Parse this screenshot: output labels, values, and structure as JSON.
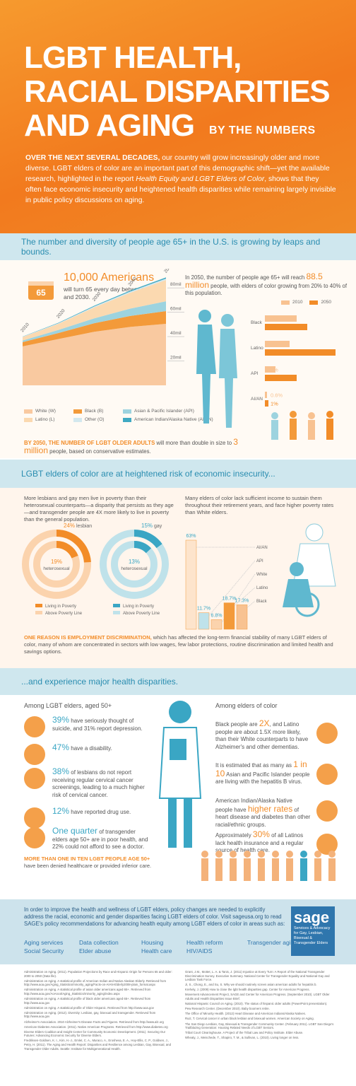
{
  "header": {
    "title_lines": [
      "LGBT HEALTH,",
      "RACIAL DISPARITIES",
      "AND AGING"
    ],
    "subtitle": "BY THE NUMBERS",
    "intro_parts": [
      "OVER THE NEXT SEVERAL DECADES,",
      " our country will grow increasingly older and more diverse. LGBT elders of color are an important part of this demographic shift—yet the available research, highlighted in the report ",
      "Health Equity and LGBT Elders of Color",
      ", shows that they often face economic insecurity and heightened health disparities while remaining largely invisible in public policy discussions on aging."
    ]
  },
  "growth": {
    "heading": "The number and diversity of people age 65+ in the U.S. is growing by leaps and bounds.",
    "cake_label": "65",
    "stat_number": "10,000 Americans",
    "stat_text": "will turn 65 every day between now and 2030.",
    "area_chart": {
      "type": "area",
      "x": [
        2010,
        2020,
        2030,
        2040,
        2050
      ],
      "xlim": [
        2010,
        2050
      ],
      "ylim": [
        0,
        90
      ],
      "yticks": [
        {
          "value": 20,
          "label": "20mil"
        },
        {
          "value": 40,
          "label": "40mil"
        },
        {
          "value": 60,
          "label": "60mil"
        },
        {
          "value": 80,
          "label": "80mil"
        }
      ],
      "series": [
        {
          "name": "White (W)",
          "color": "#f9c9a0",
          "values": [
            32,
            38,
            44,
            48,
            50.5
          ]
        },
        {
          "name": "Black (B)",
          "color": "#f39a3a",
          "values": [
            3.5,
            5,
            7,
            9,
            10.5
          ]
        },
        {
          "name": "Asian & Pacific Islander (API)",
          "color": "#9dd3df",
          "values": [
            1.3,
            2.5,
            4,
            6,
            8
          ]
        },
        {
          "name": "Latino (L)",
          "color": "#fbd9b0",
          "values": [
            2.8,
            5,
            9,
            13,
            17.5
          ]
        },
        {
          "name": "Other (O)",
          "color": "#d3e8ee",
          "values": [
            0.3,
            0.5,
            0.8,
            1,
            1.2
          ]
        },
        {
          "name": "American Indian/Alaska Native (AI/AN)",
          "color": "#3fa9c2",
          "values": [
            0.2,
            0.4,
            0.6,
            0.8,
            0.9
          ]
        }
      ]
    },
    "projection": {
      "pre": "In 2050, the number of people age 65+ will reach ",
      "highlight": "88.5 million",
      "post": " people, with elders of color growing from 20% to 40% of this population."
    },
    "bar_chart": {
      "type": "bar",
      "orientation": "horizontal",
      "categories": [
        "Black",
        "Latino",
        "API",
        "AI/AN"
      ],
      "xlim": [
        0,
        21
      ],
      "series": [
        {
          "name": "2010",
          "color": "#f8c291",
          "values": [
            9,
            7,
            3,
            0.6
          ],
          "value_labels": [
            "9%",
            "7%",
            "3%",
            "0.6%"
          ]
        },
        {
          "name": "2050",
          "color": "#f28c28",
          "values": [
            12,
            20,
            9,
            1
          ],
          "value_labels": [
            "12%",
            "20%",
            "9%",
            "1%"
          ]
        }
      ]
    },
    "footnote": {
      "lead": "BY 2050, THE NUMBER OF LGBT OLDER ADULTS",
      "mid": " will more than double in size to ",
      "highlight": "3 million",
      "post": " people, based on conservative estimates."
    }
  },
  "economic": {
    "heading": "LGBT elders of color are at heightened risk of economic insecurity...",
    "left_text": "More lesbians and gay men live in poverty than their heterosexual counterparts—a disparity that persists as they age—and transgender people are 4X more likely to live in poverty than the general population.",
    "right_text": "Many elders of color lack sufficient income to sustain them throughout their retirement years, and face higher poverty rates than White elders.",
    "donuts": [
      {
        "type": "donut",
        "categories": [
          "lesbian",
          "heterosexual"
        ],
        "values": [
          24,
          19
        ],
        "value_labels": [
          "24%",
          "19%"
        ],
        "legend": [
          "Living in Poverty",
          "Above Poverty Line"
        ],
        "colors": [
          "#f28c28",
          "#fbd3ad"
        ]
      },
      {
        "type": "donut",
        "categories": [
          "gay",
          "heterosexual"
        ],
        "values": [
          15,
          13
        ],
        "value_labels": [
          "15%",
          "13%"
        ],
        "legend": [
          "Living in Poverty",
          "Above Poverty Line"
        ],
        "colors": [
          "#3aa6c4",
          "#bfe2ea"
        ]
      }
    ],
    "poverty_chart": {
      "type": "bar",
      "categories": [
        "AI/AN",
        "API",
        "White",
        "Latino",
        "Black"
      ],
      "values": [
        63,
        11.7,
        6.8,
        18.7,
        17.3
      ],
      "value_labels": [
        "63%",
        "11.7%",
        "6.8%",
        "18.7%",
        "17.3%"
      ],
      "colors": [
        "#fde4cc",
        "#bfe2ea",
        "#fbd3ad",
        "#f39a3a",
        "#f8c291"
      ],
      "ylim": [
        0,
        65
      ]
    },
    "note": {
      "lead": "ONE REASON IS EMPLOYMENT DISCRIMINATION,",
      "post": " which has affected the long-term financial stability of many LGBT elders of color, many of whom are concentrated in sectors with low wages, few labor protections, routine discrimination and limited health and savings options."
    }
  },
  "health": {
    "heading": "...and experience major health disparities.",
    "left_heading": "Among LGBT elders, aged 50+",
    "left_items": [
      {
        "highlight": "39%",
        "text": " have seriously thought of suicide, and 31% report depression."
      },
      {
        "highlight": "47%",
        "text": " have a disability."
      },
      {
        "highlight": "38%",
        "text": " of lesbians do not report receiving regular cervical cancer screenings, leading to a much higher risk of cervical cancer."
      },
      {
        "highlight": "12%",
        "text": " have reported drug use."
      },
      {
        "highlight": "One quarter",
        "text": " of transgender elders age 50+ are in poor health, and 22% could not afford to see a doctor."
      }
    ],
    "bottom_lead": "MORE THAN ONE IN TEN LGBT PEOPLE AGE 50+",
    "bottom_text": "have been denied healthcare or provided inferior care.",
    "right_heading": "Among elders of color",
    "right_items": [
      {
        "pre": "Black people are ",
        "highlight": "2X",
        "post": ", and Latino people are about 1.5X more likely, than their White counterparts to have Alzheimer's and other dementias."
      },
      {
        "pre": "It is estimated that as many as ",
        "highlight": "1 in 10",
        "post": " Asian and Pacific Islander people are living with the hepatitis B virus."
      },
      {
        "pre": "American Indian/Alaska Native people have ",
        "highlight": "higher rates",
        "post": " of heart disease and diabetes than other racial/ethnic groups."
      },
      {
        "pre": "Approximately ",
        "highlight": "30%",
        "post": " of all Latinos lack health insurance and a regular source of health care."
      }
    ]
  },
  "cta": {
    "text": "In order to improve the health and wellness of LGBT elders, policy changes are needed to explicitly address the racial, economic and gender disparities facing LGBT elders of color. Visit sageusa.org to read SAGE's policy recommendations for advancing health equity among LGBT elders of color in areas such as:",
    "links": [
      "Aging services",
      "Social Security",
      "Data collection",
      "Elder abuse",
      "Housing",
      "Health care",
      "Health reform",
      "HIV/AIDS",
      "Transgender aging"
    ],
    "logo": "sage",
    "logo_text": "Services & Advocacy for Gay, Lesbian, Bisexual & Transgender Elders"
  },
  "references": {
    "left": [
      "Administration on Aging. (2011). Population Projections by Race and Hispanic Origin for Persons 65 and older: 2000 to 2050 (Data file).",
      "Administration on Aging. A statistical profile of American Indian and Native Alaskan Elderly. Retrieved from http://www.aoa.gov/Aging_Statistics/minority_aging/Facts-on-AIAN-Elderly2008-plain_format.aspx",
      "Administration on Aging. A statistical profile of asian older americans aged 65+. Retrieved from http://www.aoa.gov/AoAroot/Aging_Statistics/minority_aging/index.aspx",
      "Administration on Aging. A statistical profile of black older americans aged 65+. Retrieved from http://www.aoa.gov",
      "Administration on Aging. A statistical profile of Older Hispanic. Retrieved from http://www.aoa.gov",
      "Administration on Aging. (2012). Diversity: Lesbian, gay, bisexual and transgender. Retrieved from http://www.aoa.gov",
      "Alzheimer's Association. 2010 Alzheimer's Disease Facts and Figures. Retrieved from http://www.alz.org",
      "American Diabetes Association. (2011). Native American Programs. Retrieved from http://www.diabetes.org",
      "Diverse Elders Coalition and Insight Center for Community Economic Development. (2011). Securing Our Futures: Advancing Economic Security for Diverse Elders.",
      "Fredriksen-Goldsen, K. I., Kim, H.-J., Emlet, C. A., Muraco, A., Erosheva, E. A., Hoy-Ellis, C. P., Goldsen, J., Petry, H. (2011). The Aging and Health Report: Disparities and Resilience among Lesbian, Gay, Bisexual, and Transgender Older Adults. Seattle: Institute for Multigenerational Health."
    ],
    "right": [
      "Grant, J.M., Mottet, L. A. & Tanis, J. (2011) Injustice at Every Turn: A Report of the National Transgender Discrimination Survey. Executive Summary. National Center for Transgender Equality and National Gay and Lesbian Task Force.",
      "Ji, S., Chong, E., and Su, S. Why we should routinely screen asian american adults for hepatitis b.",
      "Krehely, J. (2009) How to close the lgbt health disparities gap. Center for American Progress.",
      "Movement Advancement Project, SAGE and Center for American Progress. (September 2010). LGBT Older Adults and Health Disparities Issue Brief.",
      "National Hispanic Council on Aging. (2010). The status of hispanic older adults (PowerPoint presentation).",
      "Pew Research Center. (December 2010). Baby boomers retire.",
      "The Office of Minority Health. (2012) Heart Disease and American Indians/Alaska Natives.",
      "Ruiz, T. Cervical cancer in urban black lesbian and bisexual women. American Society on Aging.",
      "The San Diego Lesbian, Gay, Bisexual & Transgender Community Center. (February 2011). LGBT San Diego's Trailblazing Generation: Housing Related Needs of LGBT Seniors.",
      "Tribal Court Clearinghouse. A Project of the Tribal Law and Policy Institute. Elder Abuse.",
      "Wheaty, J., Meischede, T., Shapiro, T. M., & Sullivan, L. (2010). Living longer on less."
    ]
  }
}
